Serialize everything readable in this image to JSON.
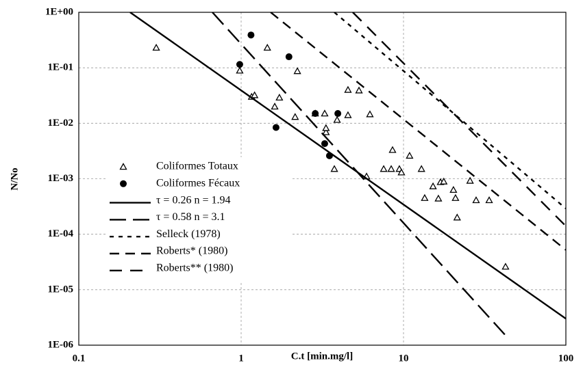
{
  "chart_data": {
    "type": "scatter",
    "xlabel": "C.t [min.mg/l]",
    "ylabel": "N/No",
    "xscale": "log",
    "yscale": "log",
    "xlim": [
      0.1,
      100
    ],
    "ylim": [
      1e-06,
      1
    ],
    "xticks": [
      0.1,
      1,
      10,
      100
    ],
    "yticks": [
      {
        "value": 1,
        "label": "1E+00"
      },
      {
        "value": 0.1,
        "label": "1E-01"
      },
      {
        "value": 0.01,
        "label": "1E-02"
      },
      {
        "value": 0.001,
        "label": "1E-03"
      },
      {
        "value": 0.0001,
        "label": "1E-04"
      },
      {
        "value": 1e-05,
        "label": "1E-05"
      },
      {
        "value": 1e-06,
        "label": "1E-06"
      }
    ],
    "grid": true,
    "legend": "lower left",
    "series": [
      {
        "name": "Coliformes Totaux",
        "color": "#000000",
        "marker": "triangle",
        "x": [
          0.3,
          0.98,
          1.16,
          1.21,
          1.45,
          1.72,
          1.61,
          2.22,
          2.15,
          2.86,
          3.27,
          3.33,
          3.33,
          3.9,
          4.55,
          5.32,
          4.55,
          6.21,
          3.75,
          5.92,
          7.55,
          8.4,
          8.56,
          9.43,
          9.71,
          10.9,
          12.9,
          13.5,
          15.2,
          16.4,
          16.9,
          17.7,
          20.3,
          20.9,
          21.4,
          25.7,
          28.0,
          33.7,
          42.5
        ],
        "values": [
          0.23,
          0.089,
          0.03,
          0.032,
          0.23,
          0.029,
          0.02,
          0.087,
          0.013,
          0.015,
          0.015,
          0.0069,
          0.0082,
          0.0115,
          0.04,
          0.039,
          0.014,
          0.0145,
          0.0015,
          0.0011,
          0.0015,
          0.0015,
          0.0033,
          0.0015,
          0.0013,
          0.0026,
          0.0015,
          0.00045,
          0.00073,
          0.00044,
          0.00087,
          0.00089,
          0.00063,
          0.00045,
          0.0002,
          0.00092,
          0.00041,
          0.00041,
          2.6e-05
        ]
      },
      {
        "name": "Coliformes Fécaux",
        "color": "#000000",
        "marker": "circle",
        "x": [
          0.98,
          1.15,
          1.97,
          1.64,
          2.86,
          3.27,
          3.94,
          3.5
        ],
        "values": [
          0.115,
          0.39,
          0.158,
          0.0084,
          0.015,
          0.0043,
          0.015,
          0.0026
        ]
      },
      {
        "name": "τ = 0.26  n = 1.94",
        "color": "#000000",
        "dash": "solid",
        "x": [
          0.207,
          100
        ],
        "values": [
          1,
          3e-06
        ]
      },
      {
        "name": "τ = 0.58  n = 3.1",
        "color": "#000000",
        "dash": "long",
        "x": [
          0.665,
          42.5
        ],
        "values": [
          1,
          1.5e-06
        ]
      },
      {
        "name": "Selleck (1978)",
        "color": "#000000",
        "dash": "short",
        "x": [
          3.75,
          100
        ],
        "values": [
          1,
          0.00029
        ]
      },
      {
        "name": "Roberts* (1980)",
        "color": "#000000",
        "dash": "medium",
        "x": [
          1.52,
          100
        ],
        "values": [
          1,
          5.2e-05
        ]
      },
      {
        "name": "Roberts** (1980)",
        "color": "#000000",
        "dash": "wide",
        "x": [
          4.87,
          100
        ],
        "values": [
          1,
          0.00014
        ]
      }
    ]
  }
}
